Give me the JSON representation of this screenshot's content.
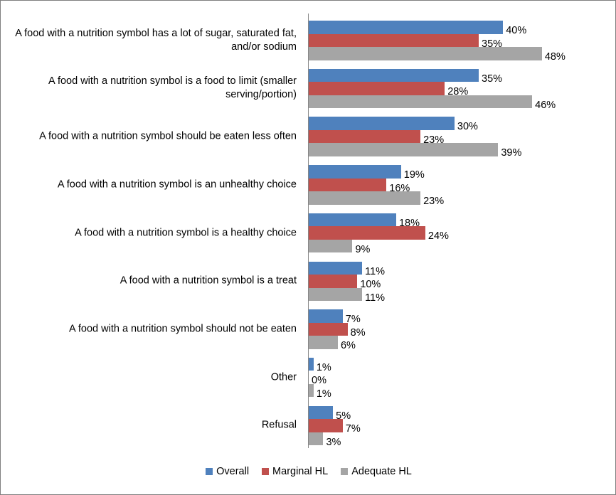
{
  "chart_data": {
    "type": "bar",
    "orientation": "horizontal",
    "categories": [
      "A food with a nutrition symbol has a lot of sugar, saturated fat, and/or sodium",
      "A food with a nutrition symbol is a food to limit (smaller serving/portion)",
      "A food with a nutrition symbol should be eaten less often",
      "A food with a nutrition symbol is an unhealthy choice",
      "A food with a nutrition symbol is a healthy choice",
      "A food with a nutrition symbol is a treat",
      "A food with a nutrition symbol should not be eaten",
      "Other",
      "Refusal"
    ],
    "series": [
      {
        "name": "Overall",
        "color": "#4f81bd",
        "values": [
          40,
          35,
          30,
          19,
          18,
          11,
          7,
          1,
          5
        ],
        "value_labels": [
          "40%",
          "35%",
          "30%",
          "19%",
          "18%",
          "11%",
          "7%",
          "1%",
          "5%"
        ]
      },
      {
        "name": "Marginal HL",
        "color": "#c0504d",
        "values": [
          35,
          28,
          23,
          16,
          24,
          10,
          8,
          0,
          7
        ],
        "value_labels": [
          "35%",
          "28%",
          "23%",
          "16%",
          "24%",
          "10%",
          "8%",
          "0%",
          "7%"
        ]
      },
      {
        "name": "Adequate HL",
        "color": "#a5a5a5",
        "values": [
          48,
          46,
          39,
          23,
          9,
          11,
          6,
          1,
          3
        ],
        "value_labels": [
          "48%",
          "46%",
          "39%",
          "23%",
          "9%",
          "11%",
          "6%",
          "1%",
          "3%"
        ]
      }
    ]
  }
}
